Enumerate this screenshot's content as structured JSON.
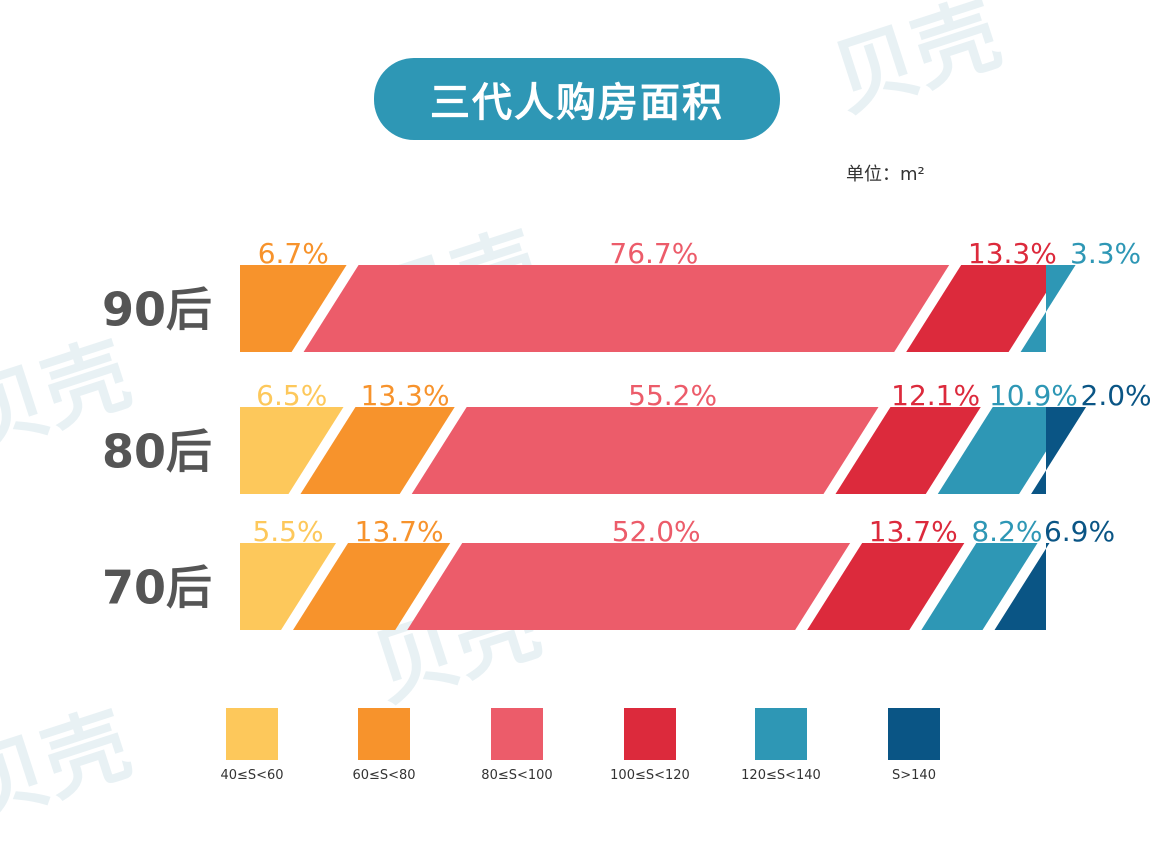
{
  "title": "三代人购房面积",
  "unit": "单位：m²",
  "watermark_text": "贝壳",
  "colors": [
    "#fdc85b",
    "#f7932c",
    "#ec5c6a",
    "#dc2a3c",
    "#2e97b5",
    "#0a5585"
  ],
  "chart_data": {
    "type": "bar",
    "stacked": true,
    "orientation": "horizontal",
    "categories": [
      "90后",
      "80后",
      "70后"
    ],
    "series": [
      {
        "name": "40≤S<60",
        "values": [
          0,
          6.5,
          5.5
        ],
        "color": "#fdc85b"
      },
      {
        "name": "60≤S<80",
        "values": [
          6.7,
          13.3,
          13.7
        ],
        "color": "#f7932c"
      },
      {
        "name": "80≤S<100",
        "values": [
          76.7,
          55.2,
          52.0
        ],
        "color": "#ec5c6a"
      },
      {
        "name": "100≤S<120",
        "values": [
          13.3,
          12.1,
          13.7
        ],
        "color": "#dc2a3c"
      },
      {
        "name": "120≤S<140",
        "values": [
          3.3,
          10.9,
          8.2
        ],
        "color": "#2e97b5"
      },
      {
        "name": "S>140",
        "values": [
          0,
          2.0,
          6.9
        ],
        "color": "#0a5585"
      }
    ],
    "labels": [
      [
        "",
        "6.7%",
        "76.7%",
        "13.3%",
        "3.3%",
        ""
      ],
      [
        "6.5%",
        "13.3%",
        "55.2%",
        "12.1%",
        "10.9%",
        "2.0%"
      ],
      [
        "5.5%",
        "13.7%",
        "52.0%",
        "13.7%",
        "8.2%",
        "6.9%"
      ]
    ],
    "legend_position": "bottom"
  },
  "legend": [
    {
      "label": "40≤S<60",
      "color": "#fdc85b"
    },
    {
      "label": "60≤S<80",
      "color": "#f7932c"
    },
    {
      "label": "80≤S<100",
      "color": "#ec5c6a"
    },
    {
      "label": "100≤S<120",
      "color": "#dc2a3c"
    },
    {
      "label": "120≤S<140",
      "color": "#2e97b5"
    },
    {
      "label": "S>140",
      "color": "#0a5585"
    }
  ]
}
